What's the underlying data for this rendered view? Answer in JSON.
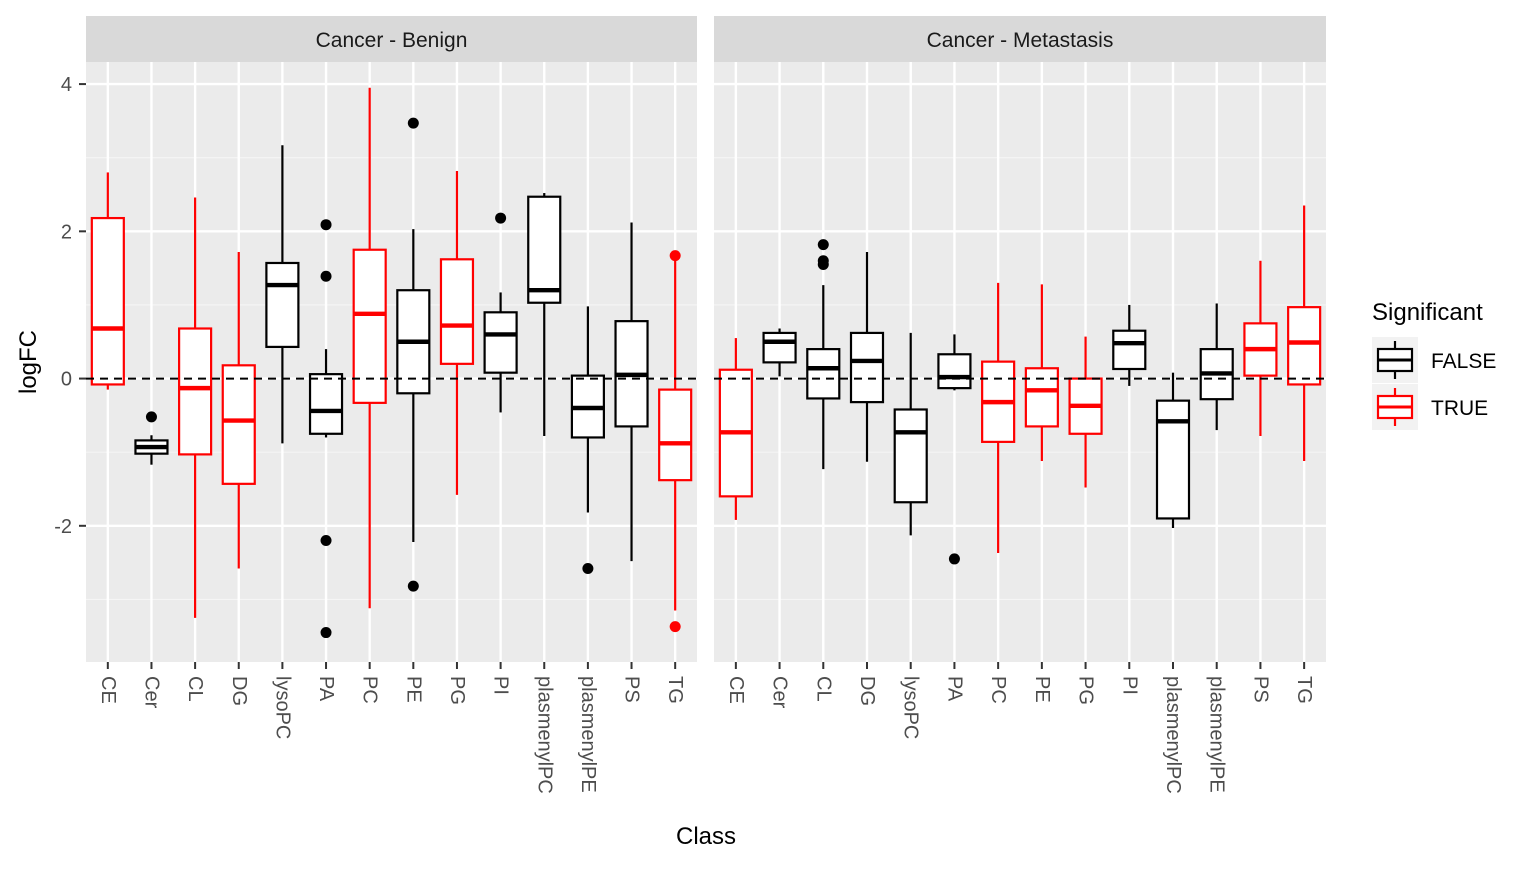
{
  "chart_data": {
    "type": "boxplot",
    "ylabel": "logFC",
    "xlabel": "Class",
    "ylim": [
      -3.85,
      4.3
    ],
    "yticks": [
      -2,
      0,
      2,
      4
    ],
    "reference_line": 0,
    "categories": [
      "CE",
      "Cer",
      "CL",
      "DG",
      "lysoPC",
      "PA",
      "PC",
      "PE",
      "PG",
      "PI",
      "plasmenylPC",
      "plasmenylPE",
      "PS",
      "TG"
    ],
    "legend": {
      "title": "Significant",
      "position": "right",
      "entries": [
        {
          "label": "FALSE",
          "color": "#000000"
        },
        {
          "label": "TRUE",
          "color": "#ff0000"
        }
      ]
    },
    "colors": {
      "FALSE": "#000000",
      "TRUE": "#ff0000"
    },
    "panels": [
      {
        "title": "Cancer - Benign",
        "boxes": [
          {
            "cat": "CE",
            "sig": "TRUE",
            "min": -0.15,
            "q1": -0.08,
            "median": 0.68,
            "q3": 2.18,
            "max": 2.8,
            "outliers": []
          },
          {
            "cat": "Cer",
            "sig": "FALSE",
            "min": -1.17,
            "q1": -1.02,
            "median": -0.93,
            "q3": -0.84,
            "max": -0.77,
            "outliers": [
              -0.52
            ]
          },
          {
            "cat": "CL",
            "sig": "TRUE",
            "min": -3.25,
            "q1": -1.03,
            "median": -0.13,
            "q3": 0.68,
            "max": 2.46,
            "outliers": []
          },
          {
            "cat": "DG",
            "sig": "TRUE",
            "min": -2.58,
            "q1": -1.43,
            "median": -0.57,
            "q3": 0.18,
            "max": 1.72,
            "outliers": []
          },
          {
            "cat": "lysoPC",
            "sig": "FALSE",
            "min": -0.88,
            "q1": 0.43,
            "median": 1.27,
            "q3": 1.57,
            "max": 3.17,
            "outliers": []
          },
          {
            "cat": "PA",
            "sig": "FALSE",
            "min": -0.8,
            "q1": -0.75,
            "median": -0.44,
            "q3": 0.06,
            "max": 0.4,
            "outliers": [
              2.09,
              1.39,
              -2.2,
              -3.45
            ]
          },
          {
            "cat": "PC",
            "sig": "TRUE",
            "min": -3.12,
            "q1": -0.33,
            "median": 0.88,
            "q3": 1.75,
            "max": 3.95,
            "outliers": []
          },
          {
            "cat": "PE",
            "sig": "FALSE",
            "min": -2.22,
            "q1": -0.2,
            "median": 0.5,
            "q3": 1.2,
            "max": 2.03,
            "outliers": [
              3.47,
              -2.82
            ]
          },
          {
            "cat": "PG",
            "sig": "TRUE",
            "min": -1.58,
            "q1": 0.2,
            "median": 0.72,
            "q3": 1.62,
            "max": 2.82,
            "outliers": []
          },
          {
            "cat": "PI",
            "sig": "FALSE",
            "min": -0.46,
            "q1": 0.08,
            "median": 0.6,
            "q3": 0.9,
            "max": 1.17,
            "outliers": [
              2.18
            ]
          },
          {
            "cat": "plasmenylPC",
            "sig": "FALSE",
            "min": -0.78,
            "q1": 1.03,
            "median": 1.2,
            "q3": 2.47,
            "max": 2.52,
            "outliers": []
          },
          {
            "cat": "plasmenylPE",
            "sig": "FALSE",
            "min": -1.82,
            "q1": -0.8,
            "median": -0.4,
            "q3": 0.04,
            "max": 0.98,
            "outliers": [
              -2.58
            ]
          },
          {
            "cat": "PS",
            "sig": "FALSE",
            "min": -2.48,
            "q1": -0.65,
            "median": 0.05,
            "q3": 0.78,
            "max": 2.12,
            "outliers": []
          },
          {
            "cat": "TG",
            "sig": "TRUE",
            "min": -3.15,
            "q1": -1.38,
            "median": -0.88,
            "q3": -0.15,
            "max": 1.67,
            "outliers": [
              1.67,
              -3.37
            ]
          }
        ]
      },
      {
        "title": "Cancer - Metastasis",
        "boxes": [
          {
            "cat": "CE",
            "sig": "TRUE",
            "min": -1.92,
            "q1": -1.6,
            "median": -0.73,
            "q3": 0.12,
            "max": 0.55,
            "outliers": []
          },
          {
            "cat": "Cer",
            "sig": "FALSE",
            "min": 0.03,
            "q1": 0.22,
            "median": 0.5,
            "q3": 0.62,
            "max": 0.68,
            "outliers": []
          },
          {
            "cat": "CL",
            "sig": "FALSE",
            "min": -1.23,
            "q1": -0.27,
            "median": 0.14,
            "q3": 0.4,
            "max": 1.27,
            "outliers": [
              1.82,
              1.6,
              1.55
            ]
          },
          {
            "cat": "DG",
            "sig": "FALSE",
            "min": -1.13,
            "q1": -0.32,
            "median": 0.24,
            "q3": 0.62,
            "max": 1.72,
            "outliers": []
          },
          {
            "cat": "lysoPC",
            "sig": "FALSE",
            "min": -2.13,
            "q1": -1.68,
            "median": -0.73,
            "q3": -0.42,
            "max": 0.62,
            "outliers": []
          },
          {
            "cat": "PA",
            "sig": "FALSE",
            "min": -0.16,
            "q1": -0.13,
            "median": 0.02,
            "q3": 0.33,
            "max": 0.6,
            "outliers": [
              -2.45
            ]
          },
          {
            "cat": "PC",
            "sig": "TRUE",
            "min": -2.37,
            "q1": -0.86,
            "median": -0.32,
            "q3": 0.23,
            "max": 1.3,
            "outliers": []
          },
          {
            "cat": "PE",
            "sig": "TRUE",
            "min": -1.12,
            "q1": -0.65,
            "median": -0.16,
            "q3": 0.14,
            "max": 1.28,
            "outliers": []
          },
          {
            "cat": "PG",
            "sig": "TRUE",
            "min": -1.48,
            "q1": -0.75,
            "median": -0.37,
            "q3": 0.0,
            "max": 0.57,
            "outliers": []
          },
          {
            "cat": "PI",
            "sig": "FALSE",
            "min": -0.1,
            "q1": 0.13,
            "median": 0.48,
            "q3": 0.65,
            "max": 1.0,
            "outliers": []
          },
          {
            "cat": "plasmenylPC",
            "sig": "FALSE",
            "min": -2.03,
            "q1": -1.9,
            "median": -0.58,
            "q3": -0.3,
            "max": 0.08,
            "outliers": []
          },
          {
            "cat": "plasmenylPE",
            "sig": "FALSE",
            "min": -0.7,
            "q1": -0.28,
            "median": 0.07,
            "q3": 0.4,
            "max": 1.02,
            "outliers": []
          },
          {
            "cat": "PS",
            "sig": "TRUE",
            "min": -0.78,
            "q1": 0.04,
            "median": 0.4,
            "q3": 0.75,
            "max": 1.6,
            "outliers": []
          },
          {
            "cat": "TG",
            "sig": "TRUE",
            "min": -1.12,
            "q1": -0.08,
            "median": 0.49,
            "q3": 0.97,
            "max": 2.35,
            "outliers": []
          }
        ]
      }
    ]
  }
}
